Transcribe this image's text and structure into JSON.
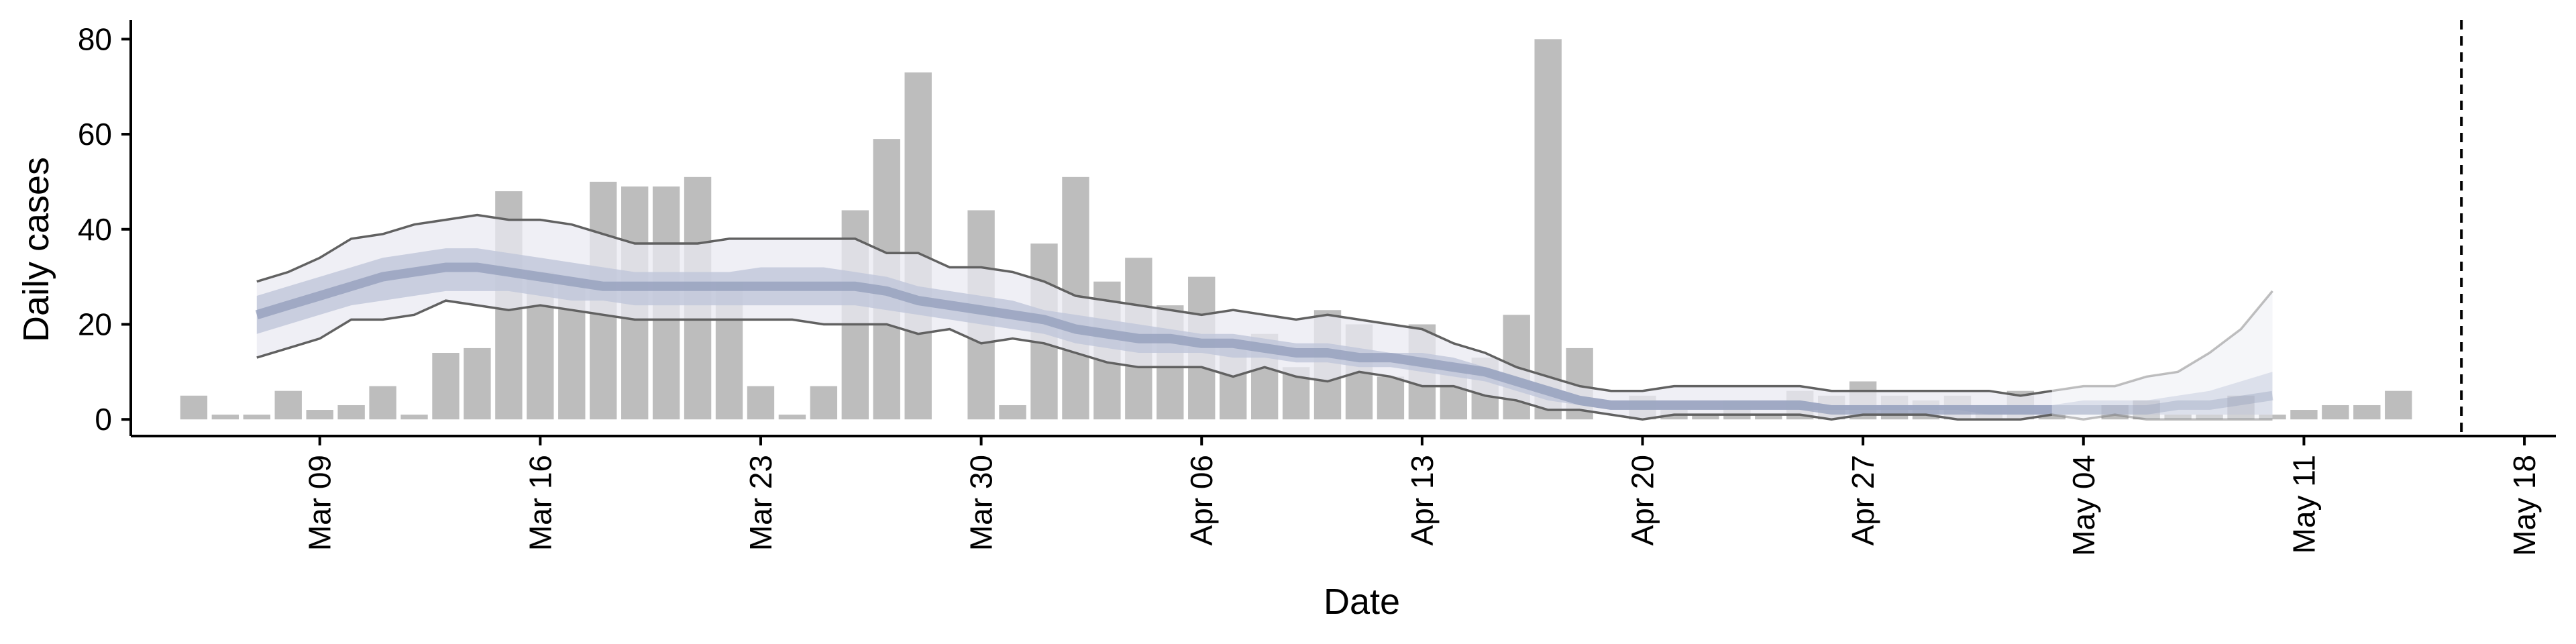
{
  "chart_data": {
    "type": "bar",
    "title": "",
    "xlabel": "Date",
    "ylabel": "Daily cases",
    "ylim": [
      -3.5,
      84
    ],
    "xlim": [
      "2020-03-03",
      "2020-05-19"
    ],
    "yticks": [
      0,
      20,
      40,
      60,
      80
    ],
    "xticks": [
      {
        "date": "2020-03-09",
        "label": "Mar 09"
      },
      {
        "date": "2020-03-16",
        "label": "Mar 16"
      },
      {
        "date": "2020-03-23",
        "label": "Mar 23"
      },
      {
        "date": "2020-03-30",
        "label": "Mar 30"
      },
      {
        "date": "2020-04-06",
        "label": "Apr 06"
      },
      {
        "date": "2020-04-13",
        "label": "Apr 13"
      },
      {
        "date": "2020-04-20",
        "label": "Apr 20"
      },
      {
        "date": "2020-04-27",
        "label": "Apr 27"
      },
      {
        "date": "2020-05-04",
        "label": "May 04"
      },
      {
        "date": "2020-05-11",
        "label": "May 11"
      },
      {
        "date": "2020-05-18",
        "label": "May 18"
      }
    ],
    "grid": false,
    "bars": {
      "start_date": "2020-03-05",
      "color": "#bdbdbd",
      "values": [
        5,
        1,
        1,
        6,
        2,
        3,
        7,
        1,
        14,
        15,
        48,
        31,
        29,
        50,
        49,
        49,
        51,
        29,
        7,
        1,
        7,
        44,
        59,
        73,
        0,
        44,
        3,
        37,
        51,
        29,
        34,
        24,
        30,
        15,
        18,
        11,
        23,
        20,
        9,
        20,
        11,
        13,
        22,
        80,
        15,
        0,
        5,
        2,
        1,
        4,
        1,
        6,
        5,
        8,
        5,
        4,
        5,
        3,
        6,
        1,
        0,
        3,
        4,
        1,
        1,
        5,
        1,
        2,
        3,
        3,
        6
      ]
    },
    "bands": {
      "start_date": "2020-03-07",
      "outer_color": "#e9eaf2",
      "inner_color": "#bfc6d9",
      "median_color": "#8f9ab8",
      "line_color": "#616161",
      "upper": [
        29,
        31,
        34,
        38,
        39,
        41,
        42,
        43,
        42,
        42,
        41,
        39,
        37,
        37,
        37,
        38,
        38,
        38,
        38,
        38,
        35,
        35,
        32,
        32,
        31,
        29,
        26,
        25,
        24,
        23,
        22,
        23,
        22,
        21,
        22,
        21,
        20,
        19,
        16,
        14,
        11,
        9,
        7,
        6,
        6,
        7,
        7,
        7,
        7,
        7,
        6,
        6,
        6,
        6,
        6,
        6,
        5,
        6,
        7,
        7,
        9,
        10,
        14,
        19,
        27
      ],
      "lower": [
        13,
        15,
        17,
        21,
        21,
        22,
        25,
        24,
        23,
        24,
        23,
        22,
        21,
        21,
        21,
        21,
        21,
        21,
        20,
        20,
        20,
        18,
        19,
        16,
        17,
        16,
        14,
        12,
        11,
        11,
        11,
        9,
        11,
        9,
        8,
        10,
        9,
        7,
        7,
        5,
        4,
        2,
        2,
        1,
        0,
        1,
        1,
        1,
        1,
        1,
        0,
        1,
        1,
        1,
        0,
        0,
        0,
        1,
        0,
        1,
        0,
        0,
        0,
        0,
        0
      ],
      "inner_upper": [
        26,
        28,
        30,
        32,
        34,
        35,
        36,
        36,
        35,
        34,
        33,
        32,
        31,
        31,
        31,
        31,
        32,
        32,
        32,
        31,
        30,
        28,
        27,
        26,
        25,
        23,
        22,
        21,
        20,
        19,
        18,
        18,
        17,
        16,
        16,
        15,
        14,
        14,
        13,
        11,
        9,
        7,
        5,
        4,
        4,
        4,
        4,
        4,
        4,
        4,
        3,
        3,
        3,
        3,
        3,
        3,
        3,
        3,
        4,
        4,
        4,
        5,
        6,
        8,
        10
      ],
      "inner_lower": [
        18,
        20,
        22,
        24,
        25,
        26,
        27,
        27,
        27,
        26,
        25,
        25,
        24,
        24,
        24,
        24,
        24,
        24,
        24,
        24,
        23,
        22,
        21,
        20,
        19,
        18,
        16,
        15,
        14,
        14,
        14,
        13,
        13,
        12,
        12,
        11,
        11,
        10,
        9,
        8,
        6,
        4,
        3,
        2,
        2,
        2,
        2,
        2,
        2,
        2,
        2,
        2,
        2,
        2,
        2,
        1,
        1,
        1,
        1,
        1,
        1,
        1,
        1,
        1,
        1
      ],
      "median": [
        22,
        24,
        26,
        28,
        30,
        31,
        32,
        32,
        31,
        30,
        29,
        28,
        28,
        28,
        28,
        28,
        28,
        28,
        28,
        28,
        27,
        25,
        24,
        23,
        22,
        21,
        19,
        18,
        17,
        17,
        16,
        16,
        15,
        14,
        14,
        13,
        13,
        12,
        11,
        10,
        8,
        6,
        4,
        3,
        3,
        3,
        3,
        3,
        3,
        3,
        2,
        2,
        2,
        2,
        2,
        2,
        2,
        2,
        2,
        2,
        2,
        3,
        3,
        4,
        5
      ]
    },
    "vline": {
      "date": "2020-05-16",
      "style": "dashed",
      "color": "#000000"
    }
  }
}
